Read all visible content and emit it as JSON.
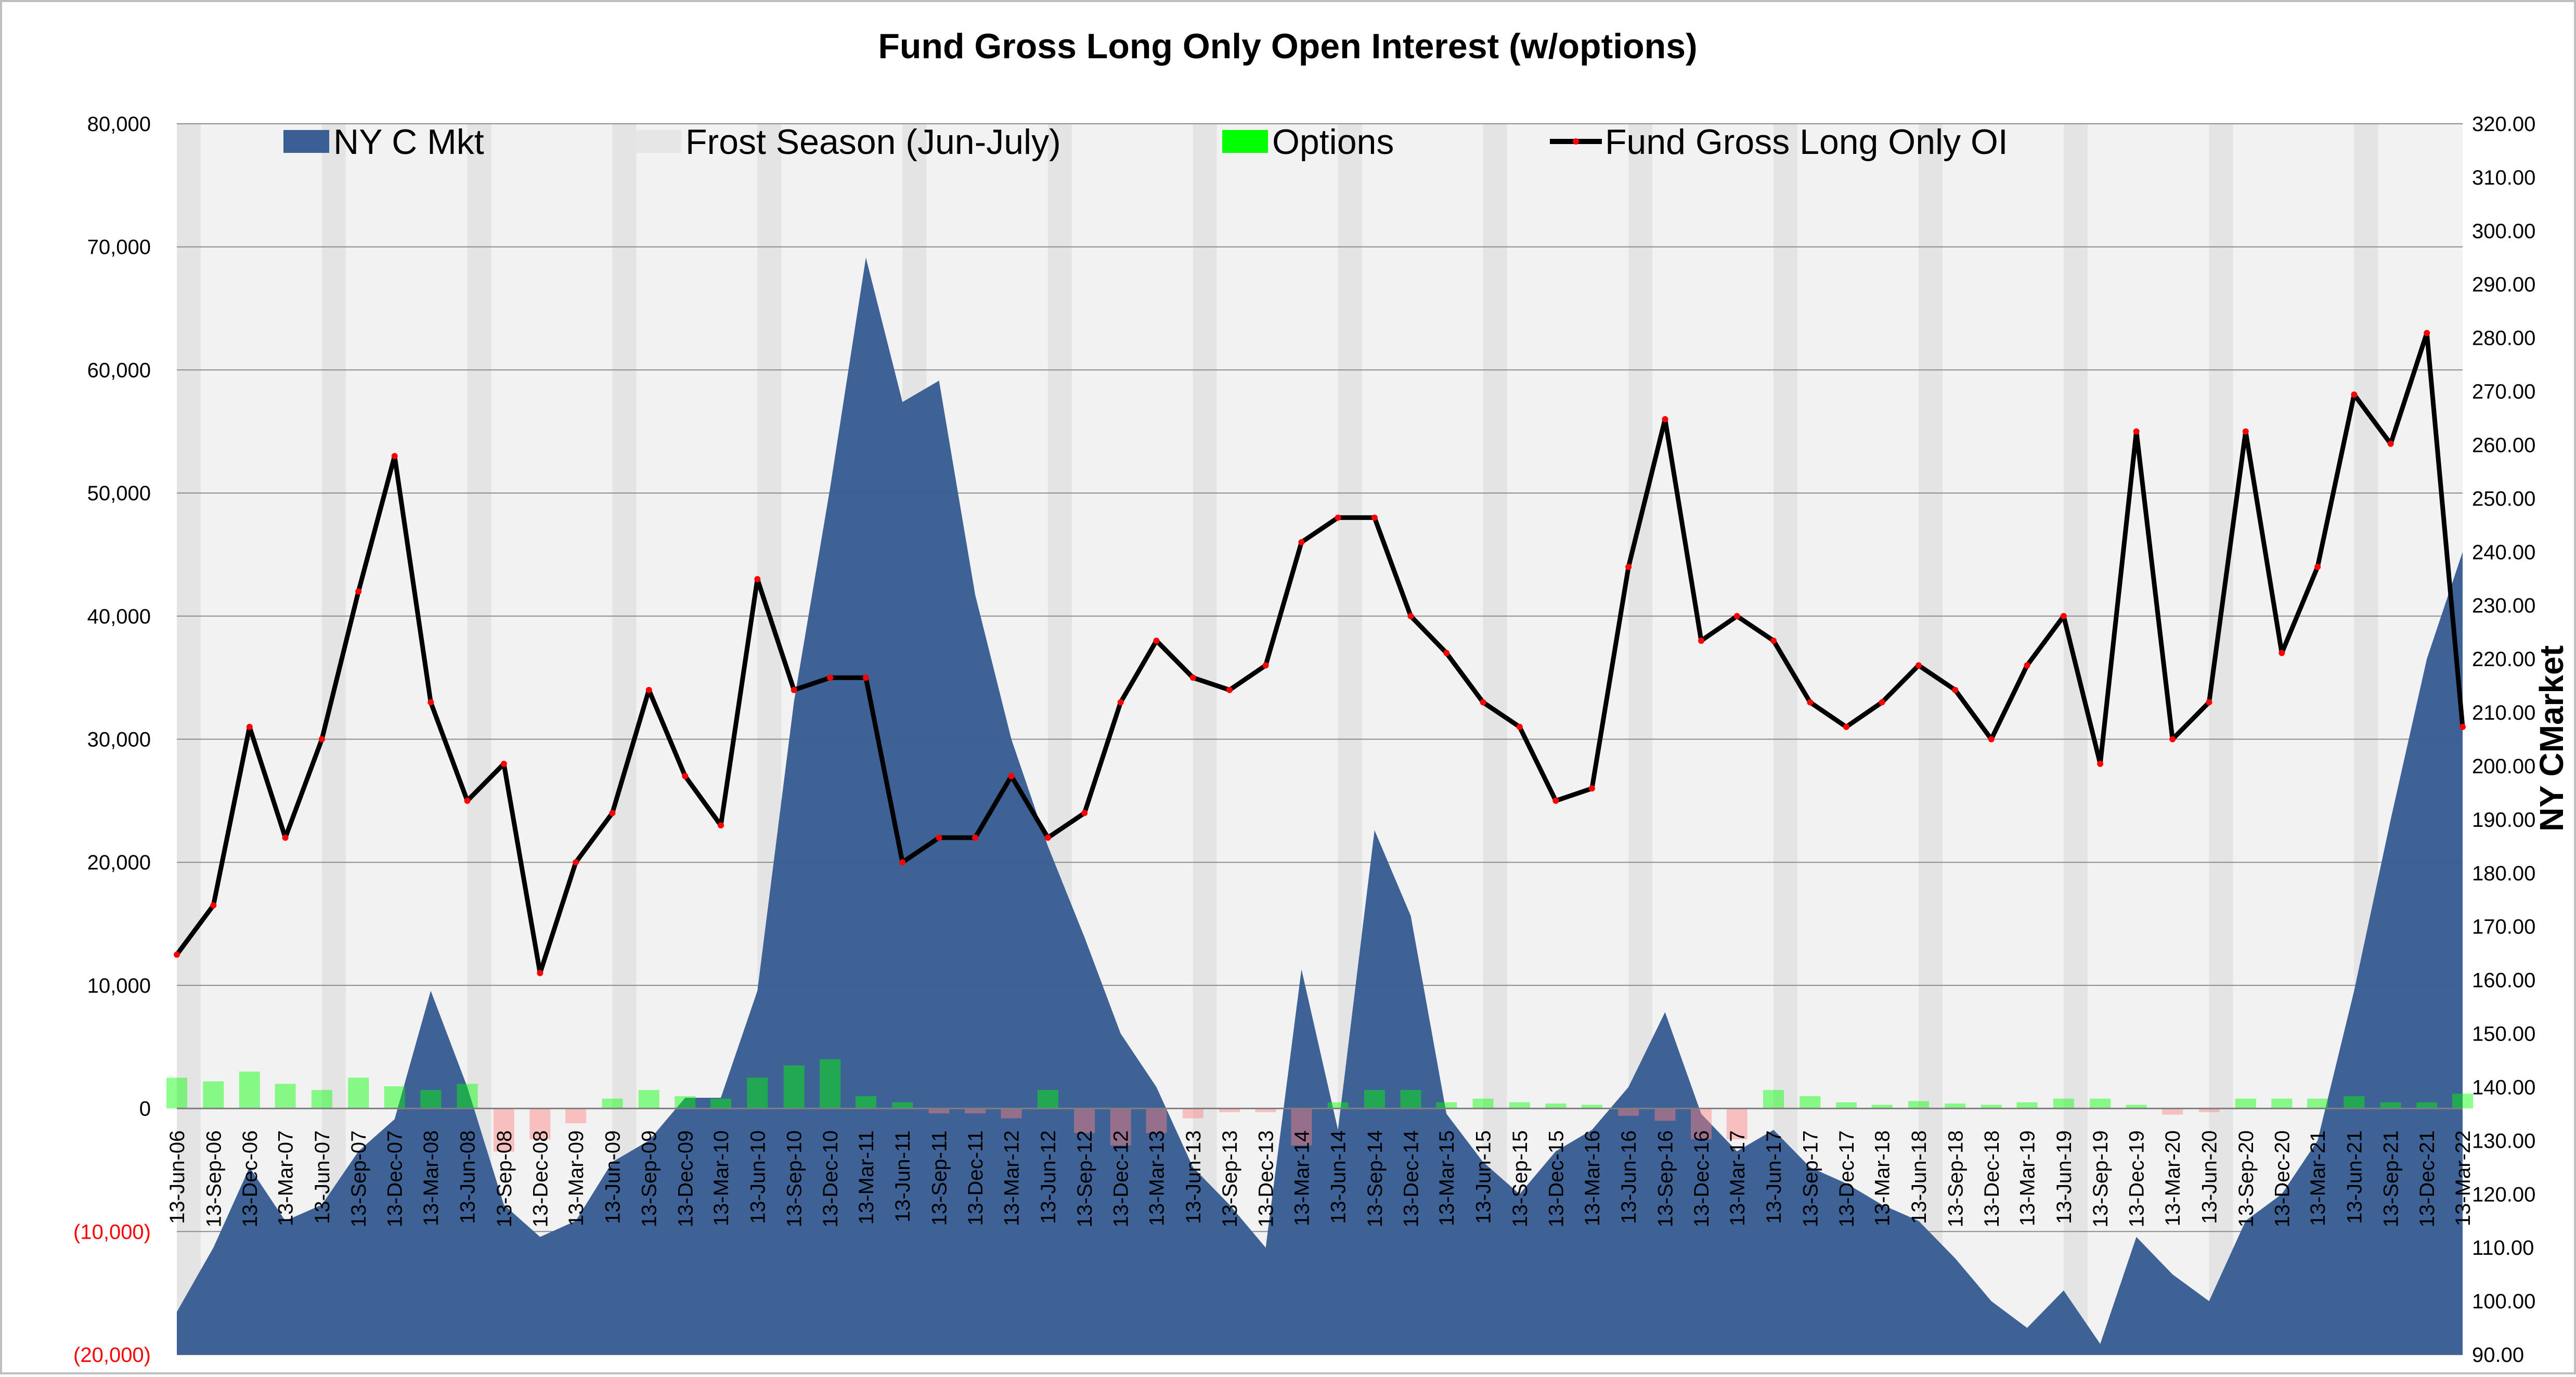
{
  "chart_data": {
    "type": "area",
    "title": "Fund Gross Long Only Open Interest (w/options)",
    "xlabel": "",
    "ylabel": "",
    "y2label": "NY CMarket",
    "ylim": [
      -20000,
      80000
    ],
    "y2lim": [
      90,
      320
    ],
    "yticks": [
      {
        "value": 80000,
        "label": "80,000"
      },
      {
        "value": 70000,
        "label": "70,000"
      },
      {
        "value": 60000,
        "label": "60,000"
      },
      {
        "value": 50000,
        "label": "50,000"
      },
      {
        "value": 40000,
        "label": "40,000"
      },
      {
        "value": 30000,
        "label": "30,000"
      },
      {
        "value": 20000,
        "label": "20,000"
      },
      {
        "value": 10000,
        "label": "10,000"
      },
      {
        "value": 0,
        "label": "0"
      },
      {
        "value": -10000,
        "label": "(10,000)"
      },
      {
        "value": -20000,
        "label": "(20,000)"
      }
    ],
    "y2ticks": [
      "90.00",
      "100.00",
      "110.00",
      "120.00",
      "130.00",
      "140.00",
      "150.00",
      "160.00",
      "170.00",
      "180.00",
      "190.00",
      "200.00",
      "210.00",
      "220.00",
      "230.00",
      "240.00",
      "250.00",
      "260.00",
      "270.00",
      "280.00",
      "290.00",
      "300.00",
      "310.00",
      "320.00"
    ],
    "xticks": [
      "13-Jun-06",
      "13-Sep-06",
      "13-Dec-06",
      "13-Mar-07",
      "13-Jun-07",
      "13-Sep-07",
      "13-Dec-07",
      "13-Mar-08",
      "13-Jun-08",
      "13-Sep-08",
      "13-Dec-08",
      "13-Mar-09",
      "13-Jun-09",
      "13-Sep-09",
      "13-Dec-09",
      "13-Mar-10",
      "13-Jun-10",
      "13-Sep-10",
      "13-Dec-10",
      "13-Mar-11",
      "13-Jun-11",
      "13-Sep-11",
      "13-Dec-11",
      "13-Mar-12",
      "13-Jun-12",
      "13-Sep-12",
      "13-Dec-12",
      "13-Mar-13",
      "13-Jun-13",
      "13-Sep-13",
      "13-Dec-13",
      "13-Mar-14",
      "13-Jun-14",
      "13-Sep-14",
      "13-Dec-14",
      "13-Mar-15",
      "13-Jun-15",
      "13-Sep-15",
      "13-Dec-15",
      "13-Mar-16",
      "13-Jun-16",
      "13-Sep-16",
      "13-Dec-16",
      "13-Mar-17",
      "13-Jun-17",
      "13-Sep-17",
      "13-Dec-17",
      "13-Mar-18",
      "13-Jun-18",
      "13-Sep-18",
      "13-Dec-18",
      "13-Mar-19",
      "13-Jun-19",
      "13-Sep-19",
      "13-Dec-19",
      "13-Mar-20",
      "13-Jun-20",
      "13-Sep-20",
      "13-Dec-20",
      "13-Mar-21",
      "13-Jun-21",
      "13-Sep-21",
      "13-Dec-21",
      "13-Mar-22"
    ],
    "legend_position": "top",
    "grid": true,
    "series": [
      {
        "name": "NY C Mkt",
        "type": "area",
        "axis": "right",
        "color": "#3a5f94",
        "x": [
          "13-Jun-06",
          "13-Sep-06",
          "13-Dec-06",
          "13-Mar-07",
          "13-Jun-07",
          "13-Sep-07",
          "13-Dec-07",
          "13-Mar-08",
          "13-Jun-08",
          "13-Sep-08",
          "13-Dec-08",
          "13-Mar-09",
          "13-Jun-09",
          "13-Sep-09",
          "13-Dec-09",
          "13-Mar-10",
          "13-Jun-10",
          "13-Sep-10",
          "13-Dec-10",
          "13-Mar-11",
          "13-Jun-11",
          "13-Sep-11",
          "13-Dec-11",
          "13-Mar-12",
          "13-Jun-12",
          "13-Sep-12",
          "13-Dec-12",
          "13-Mar-13",
          "13-Jun-13",
          "13-Sep-13",
          "13-Dec-13",
          "13-Mar-14",
          "13-Jun-14",
          "13-Sep-14",
          "13-Dec-14",
          "13-Mar-15",
          "13-Jun-15",
          "13-Sep-15",
          "13-Dec-15",
          "13-Mar-16",
          "13-Jun-16",
          "13-Sep-16",
          "13-Dec-16",
          "13-Mar-17",
          "13-Jun-17",
          "13-Sep-17",
          "13-Dec-17",
          "13-Mar-18",
          "13-Jun-18",
          "13-Sep-18",
          "13-Dec-18",
          "13-Mar-19",
          "13-Jun-19",
          "13-Sep-19",
          "13-Dec-19",
          "13-Mar-20",
          "13-Jun-20",
          "13-Sep-20",
          "13-Dec-20",
          "13-Mar-21",
          "13-Jun-21",
          "13-Sep-21",
          "13-Dec-21",
          "13-Mar-22"
        ],
        "values": [
          98,
          110,
          125,
          115,
          118,
          128,
          134,
          158,
          140,
          118,
          112,
          115,
          126,
          130,
          138,
          138,
          158,
          212,
          252,
          295,
          268,
          272,
          232,
          205,
          185,
          168,
          150,
          140,
          125,
          118,
          110,
          162,
          132,
          188,
          172,
          135,
          126,
          120,
          128,
          132,
          140,
          154,
          135,
          128,
          132,
          125,
          122,
          118,
          115,
          108,
          100,
          95,
          102,
          92,
          112,
          105,
          100,
          115,
          120,
          130,
          158,
          190,
          220,
          240
        ]
      },
      {
        "name": "Frost Season (Jun-July)",
        "type": "band",
        "color": "#e6e6e6",
        "x": [
          "13-Jun-06",
          "13-Jun-07",
          "13-Jun-08",
          "13-Jun-09",
          "13-Jun-10",
          "13-Jun-11",
          "13-Jun-12",
          "13-Jun-13",
          "13-Jun-14",
          "13-Jun-15",
          "13-Jun-16",
          "13-Jun-17",
          "13-Jun-18",
          "13-Jun-19",
          "13-Jun-20",
          "13-Jun-21"
        ]
      },
      {
        "name": "Options",
        "type": "bar",
        "axis": "left",
        "color": "#00ff00",
        "negative_color": "#ff8080",
        "x": [
          "13-Jun-06",
          "13-Sep-06",
          "13-Dec-06",
          "13-Mar-07",
          "13-Jun-07",
          "13-Sep-07",
          "13-Dec-07",
          "13-Mar-08",
          "13-Jun-08",
          "13-Sep-08",
          "13-Dec-08",
          "13-Mar-09",
          "13-Jun-09",
          "13-Sep-09",
          "13-Dec-09",
          "13-Mar-10",
          "13-Jun-10",
          "13-Sep-10",
          "13-Dec-10",
          "13-Mar-11",
          "13-Jun-11",
          "13-Sep-11",
          "13-Dec-11",
          "13-Mar-12",
          "13-Jun-12",
          "13-Sep-12",
          "13-Dec-12",
          "13-Mar-13",
          "13-Jun-13",
          "13-Sep-13",
          "13-Dec-13",
          "13-Mar-14",
          "13-Jun-14",
          "13-Sep-14",
          "13-Dec-14",
          "13-Mar-15",
          "13-Jun-15",
          "13-Sep-15",
          "13-Dec-15",
          "13-Mar-16",
          "13-Jun-16",
          "13-Sep-16",
          "13-Dec-16",
          "13-Mar-17",
          "13-Jun-17",
          "13-Sep-17",
          "13-Dec-17",
          "13-Mar-18",
          "13-Jun-18",
          "13-Sep-18",
          "13-Dec-18",
          "13-Mar-19",
          "13-Jun-19",
          "13-Sep-19",
          "13-Dec-19",
          "13-Mar-20",
          "13-Jun-20",
          "13-Sep-20",
          "13-Dec-20",
          "13-Mar-21",
          "13-Jun-21",
          "13-Sep-21",
          "13-Dec-21",
          "13-Mar-22"
        ],
        "values": [
          2500,
          2200,
          3000,
          2000,
          1500,
          2500,
          1800,
          1500,
          2000,
          -3500,
          -2500,
          -1200,
          800,
          1500,
          1000,
          800,
          2500,
          3500,
          4000,
          1000,
          500,
          -400,
          -400,
          -800,
          1500,
          -2000,
          -3000,
          -2000,
          -800,
          -300,
          -300,
          -3000,
          500,
          1500,
          1500,
          500,
          800,
          500,
          400,
          300,
          -600,
          -1000,
          -2500,
          -2500,
          1500,
          1000,
          500,
          300,
          600,
          400,
          300,
          500,
          800,
          800,
          300,
          -500,
          -300,
          800,
          800,
          800,
          1000,
          500,
          500,
          1200
        ]
      },
      {
        "name": "Fund Gross Long Only OI",
        "type": "line",
        "axis": "left",
        "color": "#000000",
        "marker_color": "#ff0000",
        "x": [
          "13-Jun-06",
          "13-Sep-06",
          "13-Dec-06",
          "13-Mar-07",
          "13-Jun-07",
          "13-Sep-07",
          "13-Dec-07",
          "13-Mar-08",
          "13-Jun-08",
          "13-Sep-08",
          "13-Dec-08",
          "13-Mar-09",
          "13-Jun-09",
          "13-Sep-09",
          "13-Dec-09",
          "13-Mar-10",
          "13-Jun-10",
          "13-Sep-10",
          "13-Dec-10",
          "13-Mar-11",
          "13-Jun-11",
          "13-Sep-11",
          "13-Dec-11",
          "13-Mar-12",
          "13-Jun-12",
          "13-Sep-12",
          "13-Dec-12",
          "13-Mar-13",
          "13-Jun-13",
          "13-Sep-13",
          "13-Dec-13",
          "13-Mar-14",
          "13-Jun-14",
          "13-Sep-14",
          "13-Dec-14",
          "13-Mar-15",
          "13-Jun-15",
          "13-Sep-15",
          "13-Dec-15",
          "13-Mar-16",
          "13-Jun-16",
          "13-Sep-16",
          "13-Dec-16",
          "13-Mar-17",
          "13-Jun-17",
          "13-Sep-17",
          "13-Dec-17",
          "13-Mar-18",
          "13-Jun-18",
          "13-Sep-18",
          "13-Dec-18",
          "13-Mar-19",
          "13-Jun-19",
          "13-Sep-19",
          "13-Dec-19",
          "13-Mar-20",
          "13-Jun-20",
          "13-Sep-20",
          "13-Dec-20",
          "13-Mar-21",
          "13-Jun-21",
          "13-Sep-21",
          "13-Dec-21",
          "13-Mar-22"
        ],
        "values": [
          12500,
          16500,
          31000,
          22000,
          30000,
          42000,
          53000,
          33000,
          25000,
          28000,
          11000,
          20000,
          24000,
          34000,
          27000,
          23000,
          43000,
          34000,
          35000,
          35000,
          20000,
          22000,
          22000,
          27000,
          22000,
          24000,
          33000,
          38000,
          35000,
          34000,
          36000,
          46000,
          48000,
          48000,
          40000,
          37000,
          33000,
          31000,
          25000,
          26000,
          44000,
          56000,
          38000,
          40000,
          38000,
          33000,
          31000,
          33000,
          36000,
          34000,
          30000,
          36000,
          40000,
          28000,
          55000,
          30000,
          33000,
          55000,
          37000,
          44000,
          58000,
          54000,
          63000,
          31000
        ]
      }
    ]
  }
}
